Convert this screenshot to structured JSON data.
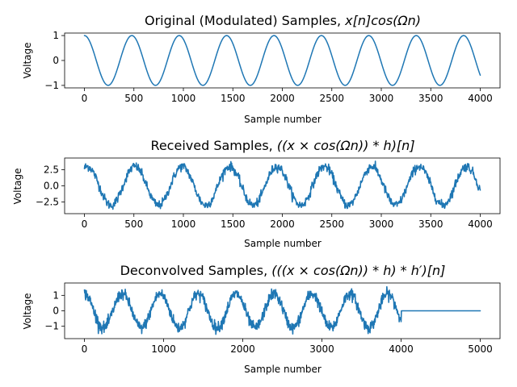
{
  "style": {
    "line_color": "#1f77b4",
    "background": "#ffffff"
  },
  "chart_data": [
    {
      "type": "line",
      "title": "Original (Modulated) Samples, x[n]cos(Ωn)",
      "title_parts": [
        "Original (Modulated) Samples, ",
        "x[n]cos(Ωn)"
      ],
      "xlabel": "Sample number",
      "ylabel": "Voltage",
      "xlim": [
        -200,
        4200
      ],
      "ylim": [
        -1.1,
        1.1
      ],
      "xticks": [
        0,
        500,
        1000,
        1500,
        2000,
        2500,
        3000,
        3500,
        4000
      ],
      "xtick_labels": [
        "0",
        "500",
        "1000",
        "1500",
        "2000",
        "2500",
        "3000",
        "3500",
        "4000"
      ],
      "yticks": [
        1,
        0,
        -1
      ],
      "ytick_labels": [
        "1",
        "0",
        "−1"
      ],
      "series": [
        {
          "values": {
            "form": "cosine",
            "amplitude": 1.0,
            "period": 479,
            "x_start": 0,
            "x_end": 4000,
            "noise_std": 0.0,
            "end_sample": null
          }
        }
      ]
    },
    {
      "type": "line",
      "title": "Received Samples, ((x × cos(Ωn)) * h)[n]",
      "title_parts": [
        "Received Samples, ",
        "((x × cos(Ωn)) * h)[n]"
      ],
      "xlabel": "Sample number",
      "ylabel": "Voltage",
      "xlim": [
        -200,
        4200
      ],
      "ylim": [
        -4.3,
        4.3
      ],
      "xticks": [
        0,
        500,
        1000,
        1500,
        2000,
        2500,
        3000,
        3500,
        4000
      ],
      "xtick_labels": [
        "0",
        "500",
        "1000",
        "1500",
        "2000",
        "2500",
        "3000",
        "3500",
        "4000"
      ],
      "yticks": [
        2.5,
        0,
        -2.5
      ],
      "ytick_labels": [
        "2.5",
        "0.0",
        "−2.5"
      ],
      "series": [
        {
          "values": {
            "form": "noisy_cosine",
            "amplitude": 3.0,
            "period": 479,
            "phase_shift": 30,
            "x_start": 0,
            "x_end": 4000,
            "noise_std": 0.35,
            "end_sample": null
          }
        }
      ]
    },
    {
      "type": "line",
      "title": "Deconvolved Samples, (((x × cos(Ωn)) * h) * h′)[n]",
      "title_parts": [
        "Deconvolved Samples, ",
        "(((x × cos(Ωn)) * h) * h′)[n]"
      ],
      "xlabel": "Sample number",
      "ylabel": "Voltage",
      "xlim": [
        -250,
        5250
      ],
      "ylim": [
        -1.8,
        1.8
      ],
      "xticks": [
        0,
        1000,
        2000,
        3000,
        4000,
        5000
      ],
      "xtick_labels": [
        "0",
        "1000",
        "2000",
        "3000",
        "4000",
        "5000"
      ],
      "yticks": [
        1,
        0,
        -1
      ],
      "ytick_labels": [
        "1",
        "0",
        "−1"
      ],
      "series": [
        {
          "values": {
            "form": "noisy_cosine_then_zero",
            "amplitude": 1.1,
            "period": 479,
            "phase_shift": 0,
            "x_start": 0,
            "x_end": 5000,
            "signal_end": 4000,
            "noise_std": 0.18,
            "end_sample": null
          }
        }
      ]
    }
  ]
}
